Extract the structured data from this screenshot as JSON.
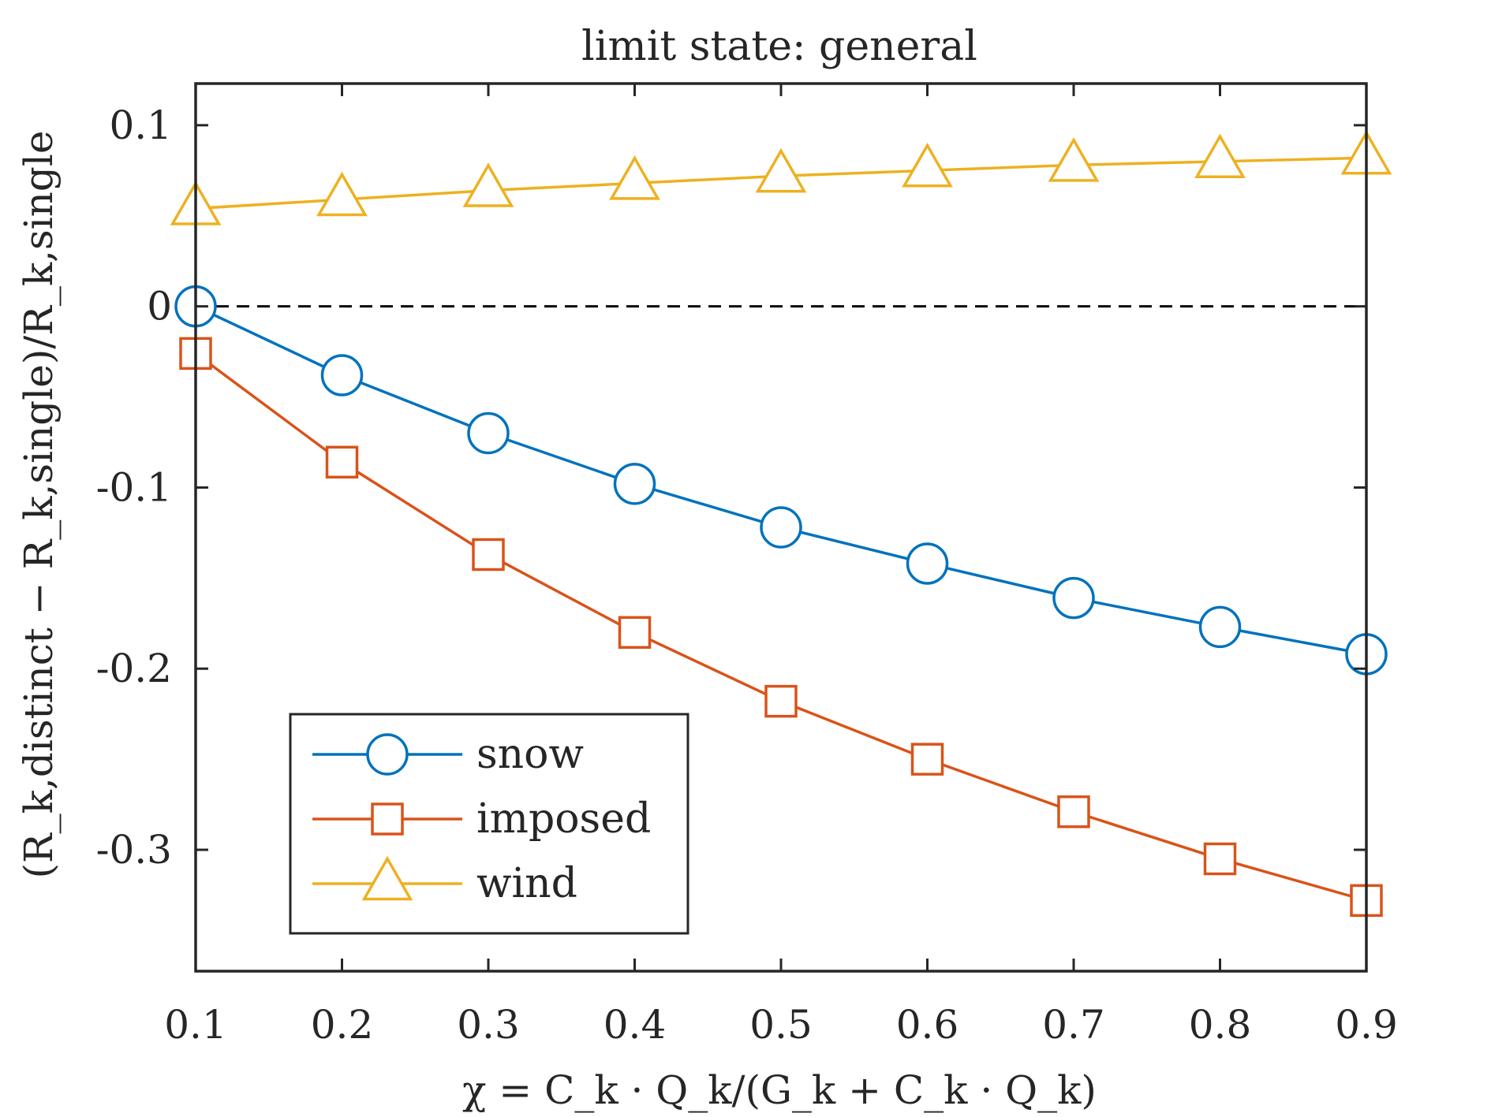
{
  "chart_data": {
    "type": "line",
    "title": "limit state: general",
    "xlabel": "χ = C_k · Q_k/(G_k + C_k · Q_k)",
    "ylabel": "(R_k,distinct − R_k,single)/R_k,single",
    "x": [
      0.1,
      0.2,
      0.3,
      0.4,
      0.5,
      0.6,
      0.7,
      0.8,
      0.9
    ],
    "xlim": [
      0.1,
      0.9
    ],
    "ylim": [
      -0.367,
      0.123
    ],
    "xticks": [
      "0.1",
      "0.2",
      "0.3",
      "0.4",
      "0.5",
      "0.6",
      "0.7",
      "0.8",
      "0.9"
    ],
    "yticks": [
      {
        "value": 0.1,
        "label": "0.1"
      },
      {
        "value": 0,
        "label": "0"
      },
      {
        "value": -0.1,
        "label": "-0.1"
      },
      {
        "value": -0.2,
        "label": "-0.2"
      },
      {
        "value": -0.3,
        "label": "-0.3"
      }
    ],
    "reference_line": {
      "y": 0,
      "style": "dashed",
      "color": "#000000"
    },
    "grid": false,
    "legend_position": "bottom-left",
    "series": [
      {
        "name": "snow",
        "marker": "circle",
        "color": "#0072BD",
        "values": [
          0.0,
          -0.038,
          -0.07,
          -0.098,
          -0.122,
          -0.142,
          -0.161,
          -0.177,
          -0.192
        ]
      },
      {
        "name": "imposed",
        "marker": "square",
        "color": "#D95319",
        "values": [
          -0.026,
          -0.086,
          -0.137,
          -0.18,
          -0.218,
          -0.25,
          -0.279,
          -0.305,
          -0.328
        ]
      },
      {
        "name": "wind",
        "marker": "triangle",
        "color": "#EDB120",
        "values": [
          0.054,
          0.059,
          0.064,
          0.068,
          0.072,
          0.075,
          0.078,
          0.08,
          0.082
        ]
      }
    ]
  }
}
